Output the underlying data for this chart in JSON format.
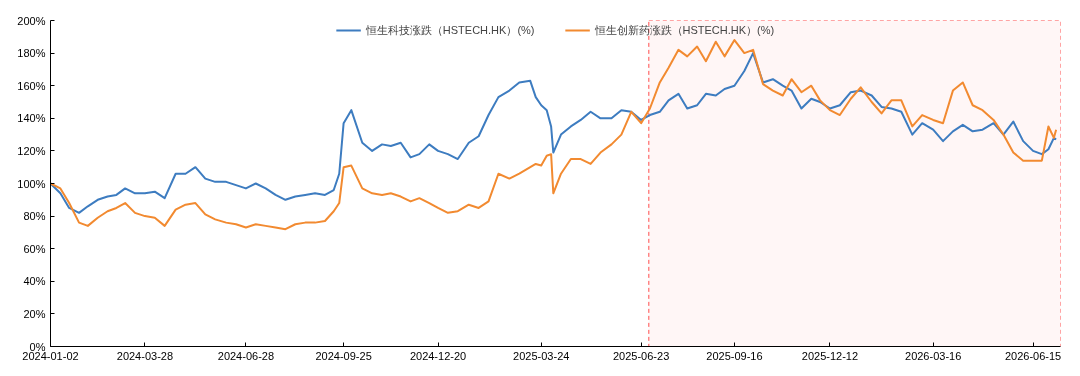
{
  "chart_data": {
    "type": "line",
    "x": [
      "2024-01-02",
      "2024-01-11",
      "2024-01-19",
      "2024-01-28",
      "2024-02-05",
      "2024-02-14",
      "2024-02-23",
      "2024-03-02",
      "2024-03-10",
      "2024-03-19",
      "2024-03-28",
      "2024-04-06",
      "2024-04-15",
      "2024-04-25",
      "2024-05-04",
      "2024-05-13",
      "2024-05-22",
      "2024-05-31",
      "2024-06-10",
      "2024-06-19",
      "2024-06-28",
      "2024-07-07",
      "2024-07-16",
      "2024-07-25",
      "2024-08-03",
      "2024-08-12",
      "2024-08-21",
      "2024-08-30",
      "2024-09-08",
      "2024-09-16",
      "2024-09-21",
      "2024-09-25",
      "2024-10-02",
      "2024-10-12",
      "2024-10-21",
      "2024-10-30",
      "2024-11-07",
      "2024-11-16",
      "2024-11-25",
      "2024-12-03",
      "2024-12-12",
      "2024-12-20",
      "2024-12-29",
      "2025-01-07",
      "2025-01-17",
      "2025-01-26",
      "2025-02-04",
      "2025-02-13",
      "2025-02-23",
      "2025-03-04",
      "2025-03-14",
      "2025-03-19",
      "2025-03-24",
      "2025-03-29",
      "2025-04-02",
      "2025-04-04",
      "2025-04-11",
      "2025-04-20",
      "2025-04-29",
      "2025-05-08",
      "2025-05-17",
      "2025-05-27",
      "2025-06-05",
      "2025-06-14",
      "2025-06-23",
      "2025-07-01",
      "2025-07-10",
      "2025-07-18",
      "2025-07-27",
      "2025-08-04",
      "2025-08-13",
      "2025-08-21",
      "2025-08-30",
      "2025-09-07",
      "2025-09-16",
      "2025-09-25",
      "2025-10-03",
      "2025-10-12",
      "2025-10-21",
      "2025-10-30",
      "2025-11-07",
      "2025-11-16",
      "2025-11-25",
      "2025-12-03",
      "2025-12-12",
      "2025-12-21",
      "2025-12-31",
      "2026-01-09",
      "2026-01-19",
      "2026-01-28",
      "2026-02-06",
      "2026-02-15",
      "2026-02-25",
      "2026-03-06",
      "2026-03-16",
      "2026-03-25",
      "2026-04-03",
      "2026-04-12",
      "2026-04-21",
      "2026-04-30",
      "2026-05-10",
      "2026-05-19",
      "2026-05-28",
      "2026-06-06",
      "2026-06-15",
      "2026-06-23",
      "2026-06-29",
      "2026-07-04",
      "2026-07-06"
    ],
    "series": [
      {
        "name": "恒生科技涨跌（HSTECH.HK）(%)",
        "color": "#3d7cc0",
        "values": [
          100,
          94,
          85,
          82,
          86,
          90,
          92,
          93,
          97,
          94,
          94,
          95,
          91,
          106,
          106,
          110,
          103,
          101,
          101,
          99,
          97,
          100,
          97,
          93,
          90,
          92,
          93,
          94,
          93,
          96,
          106,
          137,
          145,
          125,
          120,
          124,
          123,
          125,
          116,
          118,
          124,
          120,
          118,
          115,
          125,
          129,
          142,
          153,
          157,
          162,
          163,
          153,
          148,
          145,
          135,
          119,
          130,
          135,
          139,
          144,
          140,
          140,
          145,
          144,
          139,
          142,
          144,
          151,
          155,
          146,
          148,
          155,
          154,
          158,
          160,
          169,
          180,
          162,
          164,
          160,
          157,
          146,
          152,
          150,
          146,
          148,
          156,
          157,
          154,
          147,
          146,
          144,
          130,
          137,
          133,
          126,
          132,
          136,
          132,
          133,
          137,
          130,
          138,
          126,
          120,
          118,
          121,
          128,
          127
        ]
      },
      {
        "name": "恒生创新药涨跌（HSTECH.HK）(%)",
        "color": "#f28a30",
        "values": [
          100,
          97,
          88,
          76,
          74,
          79,
          83,
          85,
          88,
          82,
          80,
          79,
          74,
          84,
          87,
          88,
          81,
          78,
          76,
          75,
          73,
          75,
          74,
          73,
          72,
          75,
          76,
          76,
          77,
          83,
          88,
          110,
          111,
          97,
          94,
          93,
          94,
          92,
          89,
          91,
          88,
          85,
          82,
          83,
          87,
          85,
          89,
          106,
          103,
          106,
          110,
          112,
          111,
          117,
          118,
          94,
          106,
          115,
          115,
          112,
          119,
          124,
          130,
          144,
          137,
          146,
          162,
          171,
          182,
          178,
          184,
          175,
          187,
          178,
          188,
          180,
          182,
          161,
          157,
          154,
          164,
          156,
          160,
          151,
          145,
          142,
          152,
          159,
          150,
          143,
          151,
          151,
          135,
          142,
          139,
          137,
          157,
          162,
          148,
          145,
          139,
          130,
          119,
          114,
          114,
          114,
          135,
          128,
          133
        ]
      }
    ],
    "xlim": [
      "2024-01-02",
      "2026-07-10"
    ],
    "xticks": [
      "2024-01-02",
      "2024-03-28",
      "2024-06-28",
      "2024-09-25",
      "2024-12-20",
      "2025-03-24",
      "2025-06-23",
      "2025-09-16",
      "2025-12-12",
      "2026-03-16",
      "2026-06-15"
    ],
    "ylim": [
      0,
      200
    ],
    "yticks": [
      {
        "value": 0,
        "label": "0%"
      },
      {
        "value": 20,
        "label": "20%"
      },
      {
        "value": 40,
        "label": "40%"
      },
      {
        "value": 60,
        "label": "60%"
      },
      {
        "value": 80,
        "label": "80%"
      },
      {
        "value": 100,
        "label": "100%"
      },
      {
        "value": 120,
        "label": "120%"
      },
      {
        "value": 140,
        "label": "140%"
      },
      {
        "value": 160,
        "label": "160%"
      },
      {
        "value": 180,
        "label": "180%"
      },
      {
        "value": 200,
        "label": "200%"
      }
    ],
    "bands": [
      {
        "axis": "x",
        "from": "2025-06-30",
        "to": "2026-07-10",
        "color": "#ff4d4d"
      }
    ],
    "grid": false,
    "legend": "top",
    "line_style": "solid",
    "marker": "none"
  }
}
